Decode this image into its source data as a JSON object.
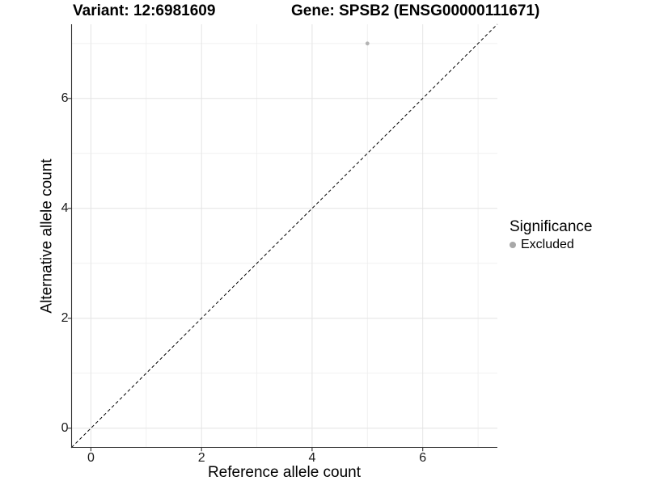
{
  "chart_data": {
    "type": "scatter",
    "title_left": "Variant: 12:6981609",
    "title_right": "Gene: SPSB2 (ENSG00000111671)",
    "xlabel": "Reference allele count",
    "ylabel": "Alternative allele count",
    "xlim": [
      -0.35,
      7.35
    ],
    "ylim": [
      -0.35,
      7.35
    ],
    "xticks": [
      0,
      2,
      4,
      6
    ],
    "yticks": [
      0,
      2,
      4,
      6
    ],
    "minor_xticks": [
      1,
      3,
      5,
      7
    ],
    "minor_yticks": [
      1,
      3,
      5,
      7
    ],
    "grid": true,
    "series": [
      {
        "name": "Excluded",
        "color": "#b3b3b3",
        "marker": "circle",
        "points": [
          [
            5,
            7
          ]
        ]
      }
    ],
    "identity_line": {
      "from": [
        -0.35,
        -0.35
      ],
      "to": [
        7.35,
        7.35
      ],
      "style": "dashed",
      "color": "#000000"
    },
    "legend": {
      "title": "Significance",
      "position": "right",
      "items": [
        {
          "label": "Excluded",
          "color": "#a8a8a8",
          "marker": "circle"
        }
      ]
    },
    "colors": {
      "grid_major": "#e4e4e4",
      "grid_minor": "#efefef",
      "axis_line": "#333333",
      "tick_mark": "#333333"
    }
  }
}
